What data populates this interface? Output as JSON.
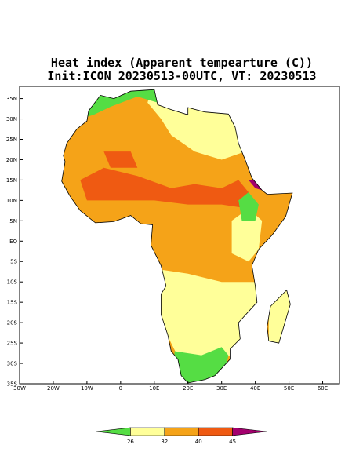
{
  "map": {
    "title": [
      "Heat index (Apparent tempearture (C))",
      "Init:ICON 20230513-00UTC, VT: 20230513"
    ],
    "xlim": [
      -30,
      65
    ],
    "ylim": [
      -35,
      38
    ],
    "xticks": [
      {
        "value": -30,
        "label": "30W"
      },
      {
        "value": -20,
        "label": "20W"
      },
      {
        "value": -10,
        "label": "10W"
      },
      0,
      {
        "value": 10,
        "label": "10E"
      },
      {
        "value": 20,
        "label": "20E"
      },
      {
        "value": 30,
        "label": "30E"
      },
      {
        "value": 40,
        "label": "40E"
      },
      {
        "value": 50,
        "label": "50E"
      },
      {
        "value": 60,
        "label": "60E"
      }
    ],
    "yticks": [
      {
        "value": 35,
        "label": "35N"
      },
      {
        "value": 30,
        "label": "30N"
      },
      {
        "value": 25,
        "label": "25N"
      },
      {
        "value": 20,
        "label": "20N"
      },
      {
        "value": 15,
        "label": "15N"
      },
      {
        "value": 10,
        "label": "10N"
      },
      {
        "value": 5,
        "label": "5N"
      },
      {
        "value": 0,
        "label": "EQ"
      },
      {
        "value": -5,
        "label": "5S"
      },
      {
        "value": -10,
        "label": "10S"
      },
      {
        "value": -15,
        "label": "15S"
      },
      {
        "value": -20,
        "label": "20S"
      },
      {
        "value": -25,
        "label": "25S"
      },
      {
        "value": -30,
        "label": "30S"
      },
      {
        "value": -35,
        "label": "35S"
      }
    ],
    "colorbar": {
      "levels": [
        26,
        32,
        40,
        45
      ],
      "colors": [
        "#55dd44",
        "#ffff99",
        "#f5a318",
        "#ef5a12",
        "#a3006e"
      ]
    }
  }
}
